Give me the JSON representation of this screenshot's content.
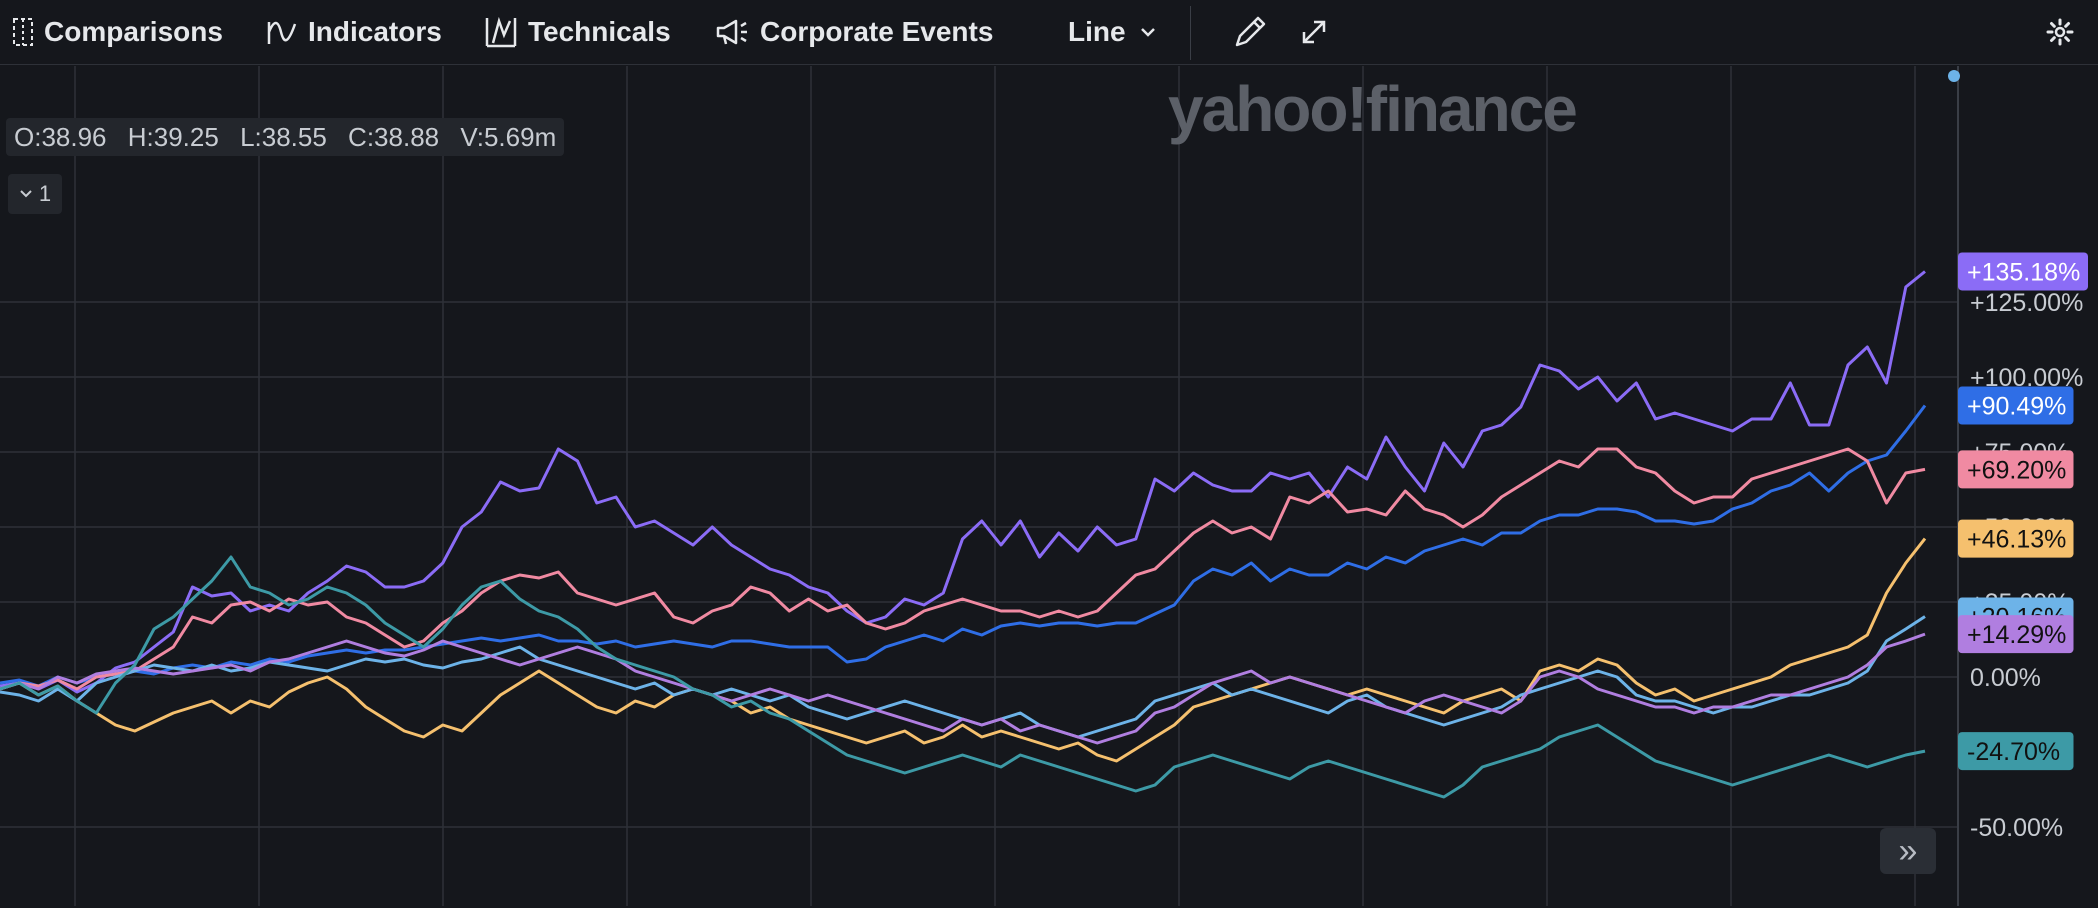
{
  "toolbar": {
    "comparisons": "Comparisons",
    "indicators": "Indicators",
    "technicals": "Technicals",
    "events": "Corporate Events",
    "chart_type": "Line"
  },
  "ohlc": {
    "o": "O:38.96",
    "h": "H:39.25",
    "l": "L:38.55",
    "c": "C:38.88",
    "v": "V:5.69m"
  },
  "collapse_label": "1",
  "watermark": "yahoo!finance",
  "scroll_label": "»",
  "colors": {
    "background": "#15171c",
    "grid": "#2e3138",
    "axis_text": "#c8ccd2"
  },
  "chart_data": {
    "type": "line",
    "y_unit": "percent",
    "ylim": [
      -55,
      145
    ],
    "y_ticks": [
      {
        "value": 125,
        "label": "+125.00%"
      },
      {
        "value": 100,
        "label": "+100.00%"
      },
      {
        "value": 75,
        "label": "+75.00%"
      },
      {
        "value": 50,
        "label": "+50.00%"
      },
      {
        "value": 25,
        "label": "+25.00%"
      },
      {
        "value": 0,
        "label": "0.00%"
      },
      {
        "value": -50,
        "label": "-50.00%"
      }
    ],
    "grid": true,
    "x_count": 101,
    "series": [
      {
        "color": "#8b6cf6",
        "label": "+135.18%",
        "label_text_color": "#ffffff",
        "values": [
          -3,
          -2,
          -4,
          -1,
          -5,
          -2,
          3,
          5,
          10,
          15,
          30,
          27,
          28,
          22,
          24,
          22,
          28,
          32,
          37,
          35,
          30,
          30,
          32,
          38,
          50,
          55,
          65,
          62,
          63,
          76,
          72,
          58,
          60,
          50,
          52,
          48,
          44,
          50,
          44,
          40,
          36,
          34,
          30,
          28,
          22,
          18,
          20,
          26,
          24,
          28,
          46,
          52,
          44,
          52,
          40,
          48,
          42,
          50,
          44,
          46,
          66,
          62,
          68,
          64,
          62,
          62,
          68,
          66,
          68,
          60,
          70,
          66,
          80,
          70,
          62,
          78,
          70,
          82,
          84,
          90,
          104,
          102,
          96,
          100,
          92,
          98,
          86,
          88,
          86,
          84,
          82,
          86,
          86,
          98,
          84,
          84,
          104,
          110,
          98,
          130,
          135.18
        ]
      },
      {
        "color": "#2f6ee6",
        "label": "+90.49%",
        "label_text_color": "#ffffff",
        "values": [
          -2,
          -1,
          -3,
          0,
          -2,
          0,
          1,
          2,
          1,
          3,
          4,
          3,
          5,
          4,
          6,
          5,
          7,
          8,
          9,
          8,
          9,
          9,
          10,
          11,
          12,
          13,
          12,
          13,
          14,
          12,
          12,
          11,
          12,
          10,
          11,
          12,
          11,
          10,
          12,
          12,
          11,
          10,
          10,
          10,
          5,
          6,
          10,
          12,
          14,
          12,
          16,
          14,
          17,
          18,
          17,
          18,
          18,
          17,
          18,
          18,
          21,
          24,
          32,
          36,
          34,
          38,
          32,
          36,
          34,
          34,
          38,
          36,
          40,
          38,
          42,
          44,
          46,
          44,
          48,
          48,
          52,
          54,
          54,
          56,
          56,
          55,
          52,
          52,
          51,
          52,
          56,
          58,
          62,
          64,
          68,
          62,
          68,
          72,
          74,
          82,
          90.49
        ]
      },
      {
        "color": "#f08aa2",
        "label": "+69.20%",
        "label_text_color": "#111111",
        "values": [
          -4,
          -2,
          -3,
          -1,
          -4,
          0,
          1,
          2,
          6,
          10,
          20,
          18,
          24,
          25,
          22,
          26,
          24,
          25,
          20,
          18,
          14,
          10,
          12,
          18,
          22,
          28,
          32,
          34,
          33,
          35,
          28,
          26,
          24,
          26,
          28,
          20,
          18,
          22,
          24,
          30,
          28,
          22,
          26,
          22,
          24,
          18,
          16,
          18,
          22,
          24,
          26,
          24,
          22,
          22,
          20,
          22,
          20,
          22,
          28,
          34,
          36,
          42,
          48,
          52,
          48,
          50,
          46,
          60,
          58,
          62,
          55,
          56,
          54,
          62,
          56,
          54,
          50,
          54,
          60,
          64,
          68,
          72,
          70,
          76,
          76,
          70,
          68,
          62,
          58,
          60,
          60,
          66,
          68,
          70,
          72,
          74,
          76,
          72,
          58,
          68,
          69.2
        ]
      },
      {
        "color": "#f5c06e",
        "label": "+46.13%",
        "label_text_color": "#111111",
        "values": [
          -4,
          -2,
          -6,
          -3,
          -8,
          -12,
          -16,
          -18,
          -15,
          -12,
          -10,
          -8,
          -12,
          -8,
          -10,
          -5,
          -2,
          0,
          -4,
          -10,
          -14,
          -18,
          -20,
          -16,
          -18,
          -12,
          -6,
          -2,
          2,
          -2,
          -6,
          -10,
          -12,
          -8,
          -10,
          -6,
          -4,
          -6,
          -8,
          -12,
          -10,
          -14,
          -16,
          -18,
          -20,
          -22,
          -20,
          -18,
          -22,
          -20,
          -16,
          -20,
          -18,
          -20,
          -22,
          -24,
          -22,
          -26,
          -28,
          -24,
          -20,
          -16,
          -10,
          -8,
          -6,
          -4,
          -2,
          0,
          -2,
          -4,
          -6,
          -4,
          -6,
          -8,
          -10,
          -12,
          -8,
          -6,
          -4,
          -8,
          2,
          4,
          2,
          6,
          4,
          -2,
          -6,
          -4,
          -8,
          -6,
          -4,
          -2,
          0,
          4,
          6,
          8,
          10,
          14,
          28,
          38,
          46.13
        ]
      },
      {
        "color": "#6db3e8",
        "label": "+20.16%",
        "label_text_color": "#111111",
        "values": [
          -5,
          -6,
          -8,
          -4,
          -8,
          -2,
          0,
          2,
          4,
          3,
          2,
          4,
          2,
          3,
          5,
          4,
          3,
          2,
          4,
          6,
          5,
          6,
          4,
          3,
          5,
          6,
          8,
          10,
          6,
          4,
          2,
          0,
          -2,
          -4,
          -2,
          -6,
          -4,
          -6,
          -4,
          -6,
          -8,
          -6,
          -10,
          -12,
          -14,
          -12,
          -10,
          -8,
          -10,
          -12,
          -14,
          -16,
          -14,
          -12,
          -16,
          -18,
          -20,
          -18,
          -16,
          -14,
          -8,
          -6,
          -4,
          -2,
          -6,
          -4,
          -6,
          -8,
          -10,
          -12,
          -8,
          -6,
          -10,
          -12,
          -14,
          -16,
          -14,
          -12,
          -10,
          -6,
          -4,
          -2,
          0,
          2,
          0,
          -6,
          -8,
          -8,
          -10,
          -12,
          -10,
          -10,
          -8,
          -6,
          -6,
          -4,
          -2,
          2,
          12,
          16,
          20.16
        ]
      },
      {
        "color": "#b07ee0",
        "label": "+14.29%",
        "label_text_color": "#111111",
        "values": [
          -4,
          -2,
          -4,
          0,
          -2,
          1,
          2,
          3,
          2,
          1,
          2,
          3,
          4,
          2,
          5,
          6,
          8,
          10,
          12,
          10,
          8,
          7,
          9,
          12,
          10,
          8,
          6,
          4,
          6,
          8,
          10,
          8,
          6,
          2,
          0,
          -2,
          -4,
          -6,
          -8,
          -6,
          -4,
          -6,
          -8,
          -6,
          -8,
          -10,
          -12,
          -14,
          -16,
          -18,
          -14,
          -16,
          -14,
          -18,
          -16,
          -18,
          -20,
          -22,
          -20,
          -18,
          -12,
          -10,
          -6,
          -2,
          0,
          2,
          -2,
          0,
          -2,
          -4,
          -6,
          -8,
          -10,
          -12,
          -8,
          -6,
          -8,
          -10,
          -12,
          -8,
          0,
          2,
          0,
          -4,
          -6,
          -8,
          -10,
          -10,
          -12,
          -10,
          -10,
          -8,
          -6,
          -6,
          -4,
          -2,
          0,
          4,
          10,
          12,
          14.29
        ]
      },
      {
        "color": "#3d9aa6",
        "label": "-24.70%",
        "label_text_color": "#111111",
        "values": [
          -4,
          -2,
          -6,
          -3,
          -8,
          -12,
          -2,
          4,
          16,
          20,
          26,
          32,
          40,
          30,
          28,
          24,
          26,
          30,
          28,
          24,
          18,
          14,
          10,
          16,
          24,
          30,
          32,
          26,
          22,
          20,
          16,
          10,
          6,
          4,
          2,
          0,
          -4,
          -6,
          -10,
          -8,
          -12,
          -14,
          -18,
          -22,
          -26,
          -28,
          -30,
          -32,
          -30,
          -28,
          -26,
          -28,
          -30,
          -26,
          -28,
          -30,
          -32,
          -34,
          -36,
          -38,
          -36,
          -30,
          -28,
          -26,
          -28,
          -30,
          -32,
          -34,
          -30,
          -28,
          -30,
          -32,
          -34,
          -36,
          -38,
          -40,
          -36,
          -30,
          -28,
          -26,
          -24,
          -20,
          -18,
          -16,
          -20,
          -24,
          -28,
          -30,
          -32,
          -34,
          -36,
          -34,
          -32,
          -30,
          -28,
          -26,
          -28,
          -30,
          -28,
          -26,
          -24.7
        ]
      }
    ]
  }
}
